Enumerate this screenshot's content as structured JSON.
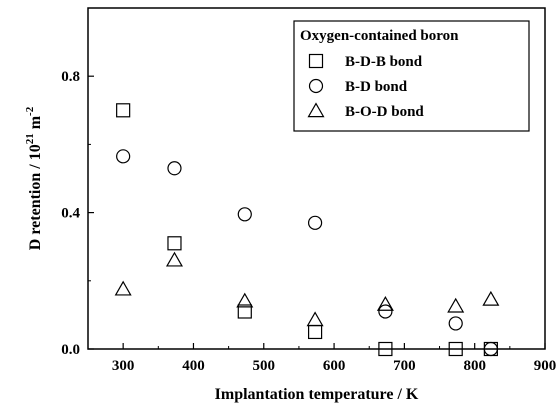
{
  "chart_data": {
    "type": "scatter",
    "title": "",
    "xlabel": "Implantation temperature / K",
    "ylabel_main": "D retention / 10",
    "ylabel_exp1": "21",
    "ylabel_unit": " m",
    "ylabel_exp2": "-2",
    "xlim": [
      250,
      900
    ],
    "ylim": [
      0,
      1.0
    ],
    "xticks": [
      300,
      400,
      500,
      600,
      700,
      800,
      900
    ],
    "yticks": [
      0.0,
      0.4,
      0.8
    ],
    "ytick_labels": [
      "0.0",
      "0.4",
      "0.8"
    ],
    "legend_title": "Oxygen-contained boron",
    "legend_position": "top-right",
    "series": [
      {
        "name": "B-D-B bond",
        "marker": "square",
        "x": [
          300,
          373,
          473,
          573,
          673,
          773,
          823
        ],
        "y": [
          0.7,
          0.31,
          0.11,
          0.05,
          0.0,
          0.0,
          0.0
        ]
      },
      {
        "name": "B-D bond",
        "marker": "circle",
        "x": [
          300,
          373,
          473,
          573,
          673,
          773,
          823
        ],
        "y": [
          0.565,
          0.53,
          0.395,
          0.37,
          0.11,
          0.075,
          0.0
        ]
      },
      {
        "name": "B-O-D bond",
        "marker": "triangle",
        "x": [
          300,
          373,
          473,
          573,
          673,
          773,
          823
        ],
        "y": [
          0.175,
          0.26,
          0.14,
          0.085,
          0.13,
          0.125,
          0.145
        ]
      }
    ]
  }
}
